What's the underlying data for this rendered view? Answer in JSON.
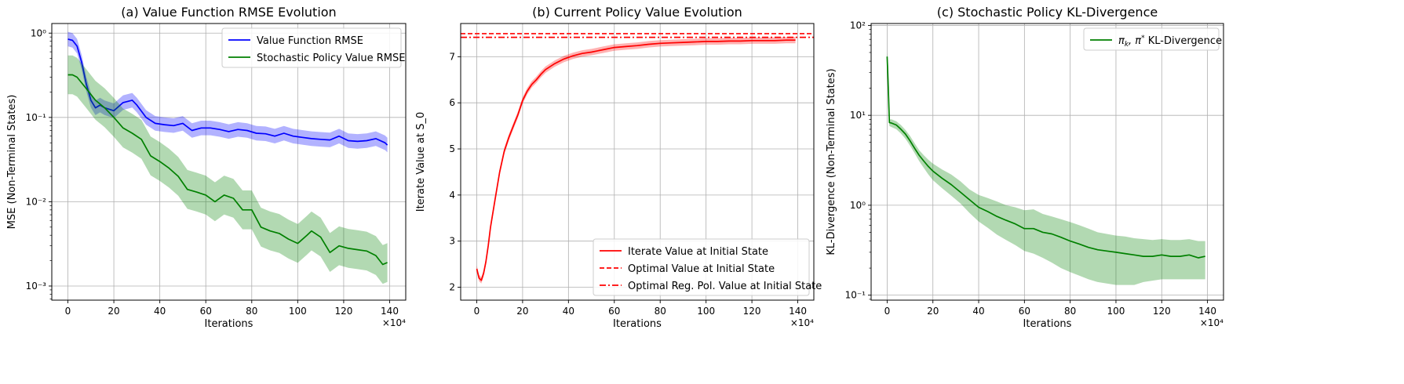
{
  "chart_data": [
    {
      "type": "line",
      "title": "(a) Value Function RMSE Evolution",
      "xlabel": "Iterations",
      "ylabel": "MSE (Non-Terminal States)",
      "x_multiplier": "×10⁴",
      "yscale": "log",
      "xlim": [
        -7,
        147
      ],
      "ylim": [
        0.00068,
        1.3
      ],
      "x_ticks": [
        0,
        20,
        40,
        60,
        80,
        100,
        120,
        140
      ],
      "x_tick_labels": [
        "0",
        "20",
        "40",
        "60",
        "80",
        "100",
        "120",
        "140"
      ],
      "y_ticks": [
        0.001,
        0.01,
        0.1,
        1
      ],
      "y_tick_labels": [
        "10⁻³",
        "10⁻²",
        "10⁻¹",
        "10⁰"
      ],
      "grid": true,
      "legend_position": "top-right",
      "series": [
        {
          "name": "Value Function RMSE",
          "color": "#0000ff",
          "x": [
            0,
            2,
            4,
            6,
            8,
            10,
            12,
            14,
            16,
            20,
            24,
            28,
            30,
            34,
            38,
            42,
            46,
            50,
            54,
            58,
            62,
            66,
            70,
            74,
            78,
            82,
            86,
            90,
            94,
            98,
            102,
            106,
            110,
            114,
            118,
            122,
            126,
            130,
            134,
            138,
            139
          ],
          "y": [
            0.85,
            0.82,
            0.7,
            0.45,
            0.25,
            0.16,
            0.13,
            0.14,
            0.13,
            0.12,
            0.15,
            0.16,
            0.14,
            0.1,
            0.085,
            0.082,
            0.08,
            0.085,
            0.07,
            0.075,
            0.075,
            0.072,
            0.068,
            0.072,
            0.07,
            0.065,
            0.064,
            0.06,
            0.065,
            0.06,
            0.058,
            0.056,
            0.055,
            0.054,
            0.06,
            0.053,
            0.052,
            0.053,
            0.056,
            0.05,
            0.047
          ],
          "band_factor": 1.22
        },
        {
          "name": "Stochastic Policy Value RMSE",
          "color": "#008000",
          "x": [
            0,
            2,
            4,
            8,
            12,
            16,
            20,
            24,
            28,
            32,
            36,
            40,
            44,
            48,
            52,
            56,
            60,
            64,
            68,
            72,
            76,
            80,
            84,
            88,
            92,
            96,
            100,
            104,
            106,
            110,
            114,
            118,
            122,
            126,
            130,
            134,
            137,
            139
          ],
          "y": [
            0.32,
            0.32,
            0.3,
            0.22,
            0.16,
            0.13,
            0.1,
            0.075,
            0.065,
            0.055,
            0.035,
            0.03,
            0.025,
            0.02,
            0.014,
            0.013,
            0.012,
            0.01,
            0.012,
            0.011,
            0.008,
            0.008,
            0.005,
            0.0045,
            0.0042,
            0.0036,
            0.0032,
            0.004,
            0.0045,
            0.0038,
            0.0025,
            0.003,
            0.0028,
            0.0027,
            0.0026,
            0.0023,
            0.0018,
            0.0019
          ],
          "band_factor": 1.7
        }
      ]
    },
    {
      "type": "line",
      "title": "(b) Current Policy Value Evolution",
      "xlabel": "Iterations",
      "ylabel": "Iterate Value at S_0",
      "x_multiplier": "×10⁴",
      "yscale": "linear",
      "xlim": [
        -7,
        147
      ],
      "ylim": [
        1.72,
        7.72
      ],
      "x_ticks": [
        0,
        20,
        40,
        60,
        80,
        100,
        120,
        140
      ],
      "x_tick_labels": [
        "0",
        "20",
        "40",
        "60",
        "80",
        "100",
        "120",
        "140"
      ],
      "y_ticks": [
        2,
        3,
        4,
        5,
        6,
        7
      ],
      "y_tick_labels": [
        "2",
        "3",
        "4",
        "5",
        "6",
        "7"
      ],
      "grid": true,
      "legend_position": "bottom-right",
      "series": [
        {
          "name": "Iterate Value at Initial State",
          "color": "#ff0000",
          "x": [
            0,
            1,
            2,
            3,
            4,
            5,
            6,
            8,
            10,
            12,
            14,
            16,
            18,
            20,
            22,
            24,
            26,
            28,
            30,
            34,
            38,
            42,
            46,
            50,
            55,
            60,
            65,
            70,
            75,
            80,
            85,
            90,
            95,
            100,
            105,
            110,
            115,
            120,
            125,
            130,
            135,
            139
          ],
          "y": [
            2.4,
            2.2,
            2.15,
            2.3,
            2.55,
            2.9,
            3.3,
            3.9,
            4.5,
            4.95,
            5.25,
            5.5,
            5.75,
            6.05,
            6.25,
            6.4,
            6.5,
            6.62,
            6.72,
            6.85,
            6.95,
            7.02,
            7.07,
            7.1,
            7.15,
            7.2,
            7.22,
            7.24,
            7.27,
            7.29,
            7.3,
            7.31,
            7.32,
            7.33,
            7.33,
            7.34,
            7.34,
            7.35,
            7.35,
            7.35,
            7.36,
            7.36
          ],
          "band": 0.07
        },
        {
          "name": "Optimal Value at Initial State",
          "color": "#ff0000",
          "style": "dashed",
          "y": 7.5
        },
        {
          "name": "Optimal Reg. Pol. Value at Initial State",
          "color": "#ff0000",
          "style": "dashdot",
          "y": 7.42
        }
      ]
    },
    {
      "type": "line",
      "title": "(c) Stochastic Policy KL-Divergence",
      "xlabel": "Iterations",
      "ylabel": "KL-Divergence (Non-Terminal States)",
      "x_multiplier": "×10⁴",
      "yscale": "log",
      "xlim": [
        -7,
        147
      ],
      "ylim": [
        0.088,
        105
      ],
      "x_ticks": [
        0,
        20,
        40,
        60,
        80,
        100,
        120,
        140
      ],
      "x_tick_labels": [
        "0",
        "20",
        "40",
        "60",
        "80",
        "100",
        "120",
        "140"
      ],
      "y_ticks": [
        0.1,
        1,
        10,
        100
      ],
      "y_tick_labels": [
        "10⁻¹",
        "10⁰",
        "10¹",
        "10²"
      ],
      "grid": true,
      "legend_position": "top-right",
      "series": [
        {
          "name": "π_k, π* KL-Divergence",
          "legend_main": "π",
          "legend_sub1": "k",
          "legend_mid": ", π",
          "legend_sup": "*",
          "legend_tail": " KL-Divergence",
          "color": "#008000",
          "x": [
            0,
            0.5,
            1,
            2,
            4,
            6,
            8,
            10,
            12,
            14,
            16,
            18,
            20,
            24,
            28,
            32,
            36,
            40,
            44,
            48,
            52,
            56,
            60,
            64,
            68,
            72,
            76,
            80,
            84,
            88,
            92,
            96,
            100,
            104,
            108,
            112,
            116,
            120,
            124,
            128,
            132,
            136,
            139
          ],
          "y": [
            45,
            20,
            8.3,
            8.2,
            7.8,
            7.0,
            6.2,
            5.2,
            4.3,
            3.6,
            3.1,
            2.7,
            2.4,
            2.0,
            1.7,
            1.4,
            1.15,
            0.95,
            0.85,
            0.75,
            0.68,
            0.62,
            0.55,
            0.55,
            0.5,
            0.48,
            0.44,
            0.4,
            0.37,
            0.34,
            0.32,
            0.31,
            0.3,
            0.29,
            0.28,
            0.27,
            0.27,
            0.28,
            0.27,
            0.27,
            0.28,
            0.26,
            0.27
          ],
          "band_lower": [
            40,
            12,
            7.6,
            7.4,
            7.0,
            6.3,
            5.5,
            4.6,
            3.8,
            3.1,
            2.6,
            2.2,
            1.9,
            1.55,
            1.28,
            1.05,
            0.82,
            0.66,
            0.56,
            0.47,
            0.41,
            0.36,
            0.31,
            0.29,
            0.26,
            0.23,
            0.2,
            0.18,
            0.165,
            0.15,
            0.14,
            0.135,
            0.13,
            0.13,
            0.13,
            0.14,
            0.145,
            0.15,
            0.15,
            0.15,
            0.15,
            0.15,
            0.15
          ],
          "band_upper": [
            50,
            35,
            9.0,
            9.0,
            8.6,
            7.8,
            6.9,
            5.9,
            4.9,
            4.1,
            3.6,
            3.2,
            2.9,
            2.5,
            2.2,
            1.85,
            1.5,
            1.3,
            1.2,
            1.1,
            1.0,
            0.95,
            0.88,
            0.9,
            0.8,
            0.75,
            0.7,
            0.65,
            0.6,
            0.55,
            0.5,
            0.48,
            0.46,
            0.45,
            0.43,
            0.42,
            0.41,
            0.42,
            0.41,
            0.41,
            0.42,
            0.4,
            0.4
          ]
        }
      ]
    }
  ]
}
